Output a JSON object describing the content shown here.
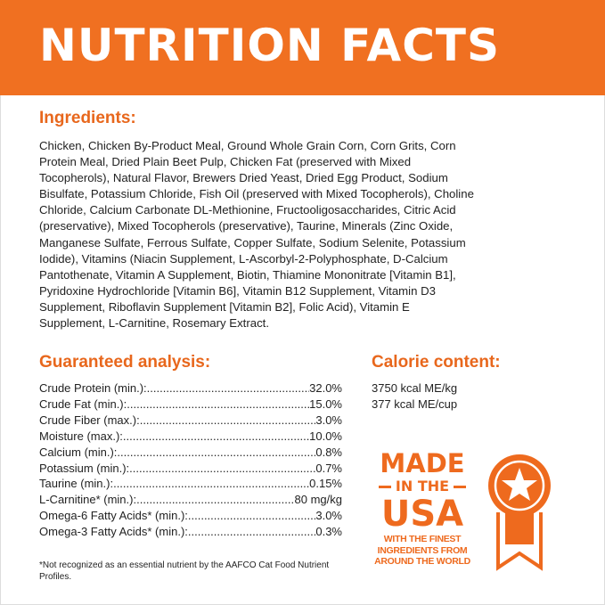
{
  "header": {
    "title": "NUTRITION FACTS"
  },
  "ingredients": {
    "heading": "Ingredients:",
    "lines": [
      "Chicken, Chicken By-Product Meal, Ground Whole Grain Corn, Corn Grits, Corn",
      "Protein Meal, Dried Plain Beet Pulp, Chicken Fat (preserved with Mixed",
      "Tocopherols), Natural Flavor, Brewers Dried Yeast, Dried Egg Product, Sodium",
      "Bisulfate, Potassium Chloride, Fish Oil (preserved with Mixed Tocopherols), Choline",
      "Chloride, Calcium Carbonate DL-Methionine, Fructooligosaccharides, Citric Acid",
      "(preservative), Mixed Tocopherols (preservative), Taurine, Minerals (Zinc Oxide,",
      "Manganese Sulfate, Ferrous Sulfate, Copper Sulfate, Sodium Selenite, Potassium",
      "Iodide), Vitamins (Niacin Supplement, L-Ascorbyl-2-Polyphosphate, D-Calcium",
      "Pantothenate, Vitamin A Supplement, Biotin, Thiamine Mononitrate [Vitamin B1],",
      "Pyridoxine Hydrochloride [Vitamin B6], Vitamin B12 Supplement, Vitamin D3",
      "Supplement, Riboflavin Supplement [Vitamin B2], Folic Acid), Vitamin E",
      "Supplement, L-Carnitine, Rosemary Extract."
    ]
  },
  "analysis": {
    "heading": "Guaranteed analysis:",
    "rows": [
      {
        "label": "Crude Protein (min.):",
        "value": "32.0%"
      },
      {
        "label": "Crude Fat (min.):",
        "value": "15.0%"
      },
      {
        "label": "Crude Fiber (max.):",
        "value": "3.0%"
      },
      {
        "label": "Moisture (max.):",
        "value": "10.0%"
      },
      {
        "label": "Calcium (min.):",
        "value": "0.8%"
      },
      {
        "label": "Potassium (min.):",
        "value": "0.7%"
      },
      {
        "label": "Taurine (min.):",
        "value": "0.15%"
      },
      {
        "label": "L-Carnitine* (min.):",
        "value": "80 mg/kg"
      },
      {
        "label": "Omega-6 Fatty Acids* (min.):",
        "value": "3.0%"
      },
      {
        "label": "Omega-3 Fatty Acids* (min.):",
        "value": "0.3%"
      }
    ]
  },
  "calorie": {
    "heading": "Calorie content:",
    "lines": [
      "3750 kcal ME/kg",
      "377 kcal ME/cup"
    ]
  },
  "footnote": "*Not recognized as an essential nutrient by the AAFCO Cat Food Nutrient Profiles.",
  "badge": {
    "made": "MADE",
    "in_the": "IN THE",
    "usa": "USA",
    "tagline": [
      "WITH THE FINEST",
      "INGREDIENTS FROM",
      "AROUND THE WORLD"
    ],
    "icon": "award-ribbon-star-icon"
  },
  "colors": {
    "brand": "#f07021",
    "heading": "#e8671c",
    "text": "#222222"
  }
}
